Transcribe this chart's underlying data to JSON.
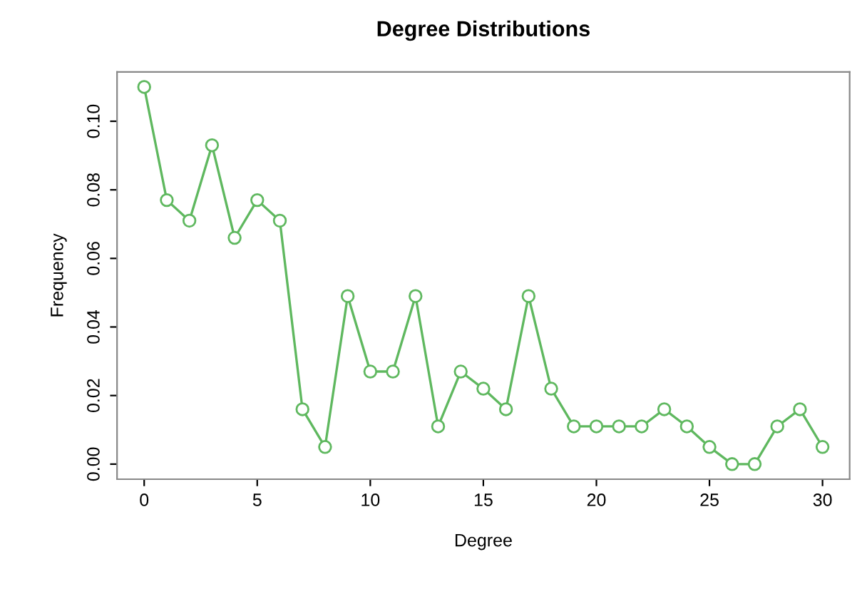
{
  "chart_data": {
    "type": "line",
    "title": "Degree Distributions",
    "xlabel": "Degree",
    "ylabel": "Frequency",
    "x": [
      0,
      1,
      2,
      3,
      4,
      5,
      6,
      7,
      8,
      9,
      10,
      11,
      12,
      13,
      14,
      15,
      16,
      17,
      18,
      19,
      20,
      21,
      22,
      23,
      24,
      25,
      26,
      27,
      28,
      29,
      30
    ],
    "series": [
      {
        "color": "#5fb85f",
        "values": [
          0.11,
          0.077,
          0.071,
          0.093,
          0.066,
          0.077,
          0.071,
          0.016,
          0.005,
          0.049,
          0.027,
          0.027,
          0.049,
          0.011,
          0.027,
          0.022,
          0.016,
          0.049,
          0.022,
          0.011,
          0.011,
          0.011,
          0.011,
          0.016,
          0.011,
          0.005,
          0.0,
          0.0,
          0.011,
          0.016,
          0.005
        ]
      }
    ],
    "xlim": [
      -1.2,
      31.2
    ],
    "ylim": [
      -0.0044,
      0.1144
    ],
    "xticks": [
      0,
      5,
      10,
      15,
      20,
      25,
      30
    ],
    "yticks": [
      {
        "value": 0,
        "label": "0.00"
      },
      {
        "value": 0.02,
        "label": "0.02"
      },
      {
        "value": 0.04,
        "label": "0.04"
      },
      {
        "value": 0.06,
        "label": "0.06"
      },
      {
        "value": 0.08,
        "label": "0.08"
      },
      {
        "value": 0.1,
        "label": "0.10"
      }
    ],
    "marker": "circle",
    "line_style": "solid",
    "grid": false,
    "legend": false
  }
}
